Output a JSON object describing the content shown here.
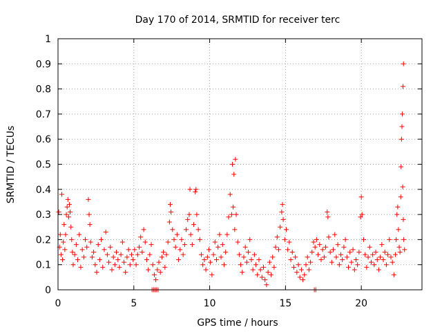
{
  "chart_data": {
    "type": "scatter",
    "title": "Day 170 of 2014, SRMTID for receiver terc",
    "xlabel": "GPS time / hours",
    "ylabel": "SRMTID / TECUs",
    "xlim": [
      0,
      24
    ],
    "ylim": [
      0,
      1
    ],
    "xticks": [
      0,
      5,
      10,
      15,
      20
    ],
    "xtick_labels": [
      "0",
      "5",
      "10",
      "15",
      "20"
    ],
    "yticks": [
      0,
      0.1,
      0.2,
      0.3,
      0.4,
      0.5,
      0.6,
      0.7,
      0.8,
      0.9,
      1
    ],
    "ytick_labels": [
      "0",
      "0.1",
      "0.2",
      "0.3",
      "0.4",
      "0.5",
      "0.6",
      "0.7",
      "0.8",
      "0.9",
      "1"
    ],
    "grid": true,
    "marker": "+",
    "color": "#ff0000",
    "series": [
      {
        "name": "SRMTID",
        "points": [
          [
            0.05,
            0.31
          ],
          [
            0.1,
            0.17
          ],
          [
            0.15,
            0.22
          ],
          [
            0.2,
            0.14
          ],
          [
            0.25,
            0.38
          ],
          [
            0.3,
            0.12
          ],
          [
            0.35,
            0.19
          ],
          [
            0.4,
            0.26
          ],
          [
            0.45,
            0.16
          ],
          [
            0.5,
            0.22
          ],
          [
            0.55,
            0.3
          ],
          [
            0.6,
            0.33
          ],
          [
            0.65,
            0.36
          ],
          [
            0.7,
            0.29
          ],
          [
            0.75,
            0.34
          ],
          [
            0.8,
            0.31
          ],
          [
            0.85,
            0.25
          ],
          [
            0.9,
            0.2
          ],
          [
            0.95,
            0.15
          ],
          [
            1.0,
            0.1
          ],
          [
            1.1,
            0.14
          ],
          [
            1.2,
            0.18
          ],
          [
            1.3,
            0.12
          ],
          [
            1.4,
            0.22
          ],
          [
            1.5,
            0.09
          ],
          [
            1.6,
            0.16
          ],
          [
            1.7,
            0.13
          ],
          [
            1.8,
            0.2
          ],
          [
            1.9,
            0.17
          ],
          [
            2.0,
            0.36
          ],
          [
            2.05,
            0.3
          ],
          [
            2.1,
            0.26
          ],
          [
            2.15,
            0.19
          ],
          [
            2.25,
            0.13
          ],
          [
            2.35,
            0.15
          ],
          [
            2.45,
            0.1
          ],
          [
            2.55,
            0.07
          ],
          [
            2.65,
            0.18
          ],
          [
            2.75,
            0.12
          ],
          [
            2.85,
            0.2
          ],
          [
            2.95,
            0.09
          ],
          [
            3.05,
            0.16
          ],
          [
            3.15,
            0.23
          ],
          [
            3.25,
            0.14
          ],
          [
            3.35,
            0.11
          ],
          [
            3.45,
            0.17
          ],
          [
            3.55,
            0.08
          ],
          [
            3.65,
            0.13
          ],
          [
            3.75,
            0.1
          ],
          [
            3.85,
            0.15
          ],
          [
            3.95,
            0.12
          ],
          [
            4.05,
            0.09
          ],
          [
            4.15,
            0.14
          ],
          [
            4.25,
            0.19
          ],
          [
            4.35,
            0.11
          ],
          [
            4.45,
            0.07
          ],
          [
            4.55,
            0.13
          ],
          [
            4.65,
            0.16
          ],
          [
            4.75,
            0.1
          ],
          [
            4.85,
            0.14
          ],
          [
            4.95,
            0.12
          ],
          [
            5.05,
            0.16
          ],
          [
            5.15,
            0.1
          ],
          [
            5.25,
            0.14
          ],
          [
            5.35,
            0.17
          ],
          [
            5.45,
            0.21
          ],
          [
            5.55,
            0.15
          ],
          [
            5.65,
            0.24
          ],
          [
            5.75,
            0.19
          ],
          [
            5.85,
            0.12
          ],
          [
            5.95,
            0.08
          ],
          [
            6.05,
            0.14
          ],
          [
            6.15,
            0.18
          ],
          [
            6.25,
            0.1
          ],
          [
            6.35,
            0.06
          ],
          [
            6.45,
            0.04
          ],
          [
            6.55,
            0.08
          ],
          [
            6.65,
            0.11
          ],
          [
            6.75,
            0.07
          ],
          [
            6.85,
            0.13
          ],
          [
            6.95,
            0.15
          ],
          [
            7.05,
            0.09
          ],
          [
            7.15,
            0.14
          ],
          [
            7.25,
            0.19
          ],
          [
            7.35,
            0.27
          ],
          [
            7.4,
            0.34
          ],
          [
            7.45,
            0.31
          ],
          [
            7.55,
            0.24
          ],
          [
            7.65,
            0.2
          ],
          [
            7.75,
            0.17
          ],
          [
            7.85,
            0.22
          ],
          [
            7.95,
            0.12
          ],
          [
            8.05,
            0.16
          ],
          [
            8.15,
            0.2
          ],
          [
            8.25,
            0.14
          ],
          [
            8.35,
            0.18
          ],
          [
            8.45,
            0.24
          ],
          [
            8.55,
            0.28
          ],
          [
            8.65,
            0.3
          ],
          [
            8.7,
            0.4
          ],
          [
            8.75,
            0.22
          ],
          [
            8.85,
            0.18
          ],
          [
            8.95,
            0.26
          ],
          [
            9.05,
            0.39
          ],
          [
            9.1,
            0.4
          ],
          [
            9.15,
            0.3
          ],
          [
            9.25,
            0.24
          ],
          [
            9.35,
            0.2
          ],
          [
            9.45,
            0.14
          ],
          [
            9.55,
            0.1
          ],
          [
            9.65,
            0.12
          ],
          [
            9.75,
            0.08
          ],
          [
            9.85,
            0.13
          ],
          [
            9.95,
            0.16
          ],
          [
            10.05,
            0.11
          ],
          [
            10.15,
            0.06
          ],
          [
            10.25,
            0.14
          ],
          [
            10.35,
            0.19
          ],
          [
            10.45,
            0.12
          ],
          [
            10.55,
            0.17
          ],
          [
            10.65,
            0.22
          ],
          [
            10.75,
            0.13
          ],
          [
            10.85,
            0.18
          ],
          [
            10.95,
            0.1
          ],
          [
            11.05,
            0.15
          ],
          [
            11.15,
            0.22
          ],
          [
            11.25,
            0.29
          ],
          [
            11.35,
            0.38
          ],
          [
            11.45,
            0.3
          ],
          [
            11.5,
            0.5
          ],
          [
            11.55,
            0.33
          ],
          [
            11.6,
            0.46
          ],
          [
            11.65,
            0.24
          ],
          [
            11.7,
            0.52
          ],
          [
            11.75,
            0.3
          ],
          [
            11.85,
            0.19
          ],
          [
            11.95,
            0.14
          ],
          [
            12.05,
            0.1
          ],
          [
            12.15,
            0.07
          ],
          [
            12.25,
            0.13
          ],
          [
            12.35,
            0.17
          ],
          [
            12.45,
            0.11
          ],
          [
            12.55,
            0.15
          ],
          [
            12.65,
            0.2
          ],
          [
            12.75,
            0.12
          ],
          [
            12.85,
            0.08
          ],
          [
            12.95,
            0.14
          ],
          [
            13.05,
            0.1
          ],
          [
            13.15,
            0.06
          ],
          [
            13.25,
            0.12
          ],
          [
            13.35,
            0.08
          ],
          [
            13.45,
            0.05
          ],
          [
            13.55,
            0.09
          ],
          [
            13.65,
            0.04
          ],
          [
            13.75,
            0.02
          ],
          [
            13.85,
            0.07
          ],
          [
            13.95,
            0.11
          ],
          [
            14.05,
            0.06
          ],
          [
            14.15,
            0.13
          ],
          [
            14.25,
            0.09
          ],
          [
            14.35,
            0.17
          ],
          [
            14.45,
            0.21
          ],
          [
            14.55,
            0.16
          ],
          [
            14.65,
            0.25
          ],
          [
            14.75,
            0.31
          ],
          [
            14.8,
            0.34
          ],
          [
            14.85,
            0.28
          ],
          [
            14.95,
            0.2
          ],
          [
            15.05,
            0.24
          ],
          [
            15.15,
            0.16
          ],
          [
            15.25,
            0.19
          ],
          [
            15.35,
            0.12
          ],
          [
            15.45,
            0.15
          ],
          [
            15.55,
            0.09
          ],
          [
            15.65,
            0.13
          ],
          [
            15.75,
            0.07
          ],
          [
            15.85,
            0.1
          ],
          [
            15.95,
            0.05
          ],
          [
            16.05,
            0.08
          ],
          [
            16.15,
            0.04
          ],
          [
            16.25,
            0.06
          ],
          [
            16.35,
            0.1
          ],
          [
            16.45,
            0.13
          ],
          [
            16.55,
            0.08
          ],
          [
            16.65,
            0.11
          ],
          [
            16.75,
            0.15
          ],
          [
            16.85,
            0.19
          ],
          [
            16.95,
            0.17
          ],
          [
            17.05,
            0.2
          ],
          [
            17.15,
            0.14
          ],
          [
            17.25,
            0.18
          ],
          [
            17.35,
            0.12
          ],
          [
            17.45,
            0.16
          ],
          [
            17.55,
            0.13
          ],
          [
            17.65,
            0.17
          ],
          [
            17.75,
            0.31
          ],
          [
            17.8,
            0.29
          ],
          [
            17.85,
            0.21
          ],
          [
            17.95,
            0.15
          ],
          [
            18.05,
            0.11
          ],
          [
            18.15,
            0.16
          ],
          [
            18.25,
            0.22
          ],
          [
            18.35,
            0.13
          ],
          [
            18.45,
            0.18
          ],
          [
            18.55,
            0.1
          ],
          [
            18.65,
            0.14
          ],
          [
            18.75,
            0.12
          ],
          [
            18.85,
            0.17
          ],
          [
            18.95,
            0.2
          ],
          [
            19.05,
            0.13
          ],
          [
            19.15,
            0.09
          ],
          [
            19.25,
            0.15
          ],
          [
            19.35,
            0.11
          ],
          [
            19.45,
            0.16
          ],
          [
            19.55,
            0.08
          ],
          [
            19.65,
            0.12
          ],
          [
            19.75,
            0.1
          ],
          [
            19.85,
            0.15
          ],
          [
            19.95,
            0.29
          ],
          [
            20.0,
            0.37
          ],
          [
            20.05,
            0.3
          ],
          [
            20.15,
            0.2
          ],
          [
            20.25,
            0.14
          ],
          [
            20.35,
            0.09
          ],
          [
            20.45,
            0.13
          ],
          [
            20.55,
            0.17
          ],
          [
            20.65,
            0.11
          ],
          [
            20.75,
            0.14
          ],
          [
            20.85,
            0.1
          ],
          [
            20.95,
            0.15
          ],
          [
            21.05,
            0.12
          ],
          [
            21.15,
            0.08
          ],
          [
            21.25,
            0.13
          ],
          [
            21.35,
            0.18
          ],
          [
            21.45,
            0.12
          ],
          [
            21.55,
            0.15
          ],
          [
            21.65,
            0.1
          ],
          [
            21.75,
            0.14
          ],
          [
            21.85,
            0.2
          ],
          [
            21.95,
            0.13
          ],
          [
            22.05,
            0.11
          ],
          [
            22.15,
            0.06
          ],
          [
            22.25,
            0.14
          ],
          [
            22.3,
            0.2
          ],
          [
            22.35,
            0.3
          ],
          [
            22.4,
            0.33
          ],
          [
            22.45,
            0.24
          ],
          [
            22.5,
            0.17
          ],
          [
            22.55,
            0.15
          ],
          [
            22.6,
            0.37
          ],
          [
            22.62,
            0.49
          ],
          [
            22.65,
            0.6
          ],
          [
            22.68,
            0.65
          ],
          [
            22.7,
            0.7
          ],
          [
            22.73,
            0.41
          ],
          [
            22.75,
            0.81
          ],
          [
            22.77,
            0.28
          ],
          [
            22.78,
            0.9
          ],
          [
            22.8,
            0.2
          ],
          [
            22.85,
            0.16
          ],
          [
            6.2,
            0.0
          ],
          [
            6.3,
            0.0
          ],
          [
            6.4,
            0.0
          ],
          [
            6.5,
            0.0
          ],
          [
            6.6,
            0.0
          ],
          [
            16.9,
            0.0
          ],
          [
            17.0,
            0.0
          ]
        ]
      }
    ]
  }
}
